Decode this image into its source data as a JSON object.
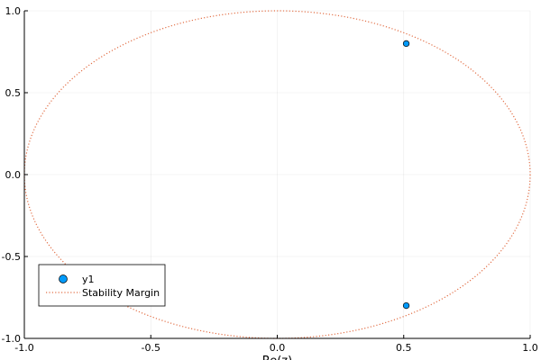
{
  "chart_data": {
    "type": "scatter",
    "xlabel": "Re(z)",
    "ylabel": "",
    "xlim": [
      -1.0,
      1.0
    ],
    "ylim": [
      -1.0,
      1.0
    ],
    "grid": true,
    "legend_position": "bottom-left",
    "x_ticks": [
      "-1.0",
      "-0.5",
      "0.0",
      "0.5",
      "1.0"
    ],
    "y_ticks": [
      "-1.0",
      "-0.5",
      "0.0",
      "0.5",
      "1.0"
    ],
    "series": [
      {
        "name": "y1",
        "kind": "scatter",
        "color": "#009AFA",
        "x": [
          0.51,
          0.51
        ],
        "y": [
          0.8,
          -0.8
        ]
      },
      {
        "name": "Stability Margin",
        "kind": "curve",
        "color": "#E26F46",
        "style": "dotted",
        "shape": "unit circle",
        "radius": 1.0,
        "center": [
          0.0,
          0.0
        ]
      }
    ]
  }
}
